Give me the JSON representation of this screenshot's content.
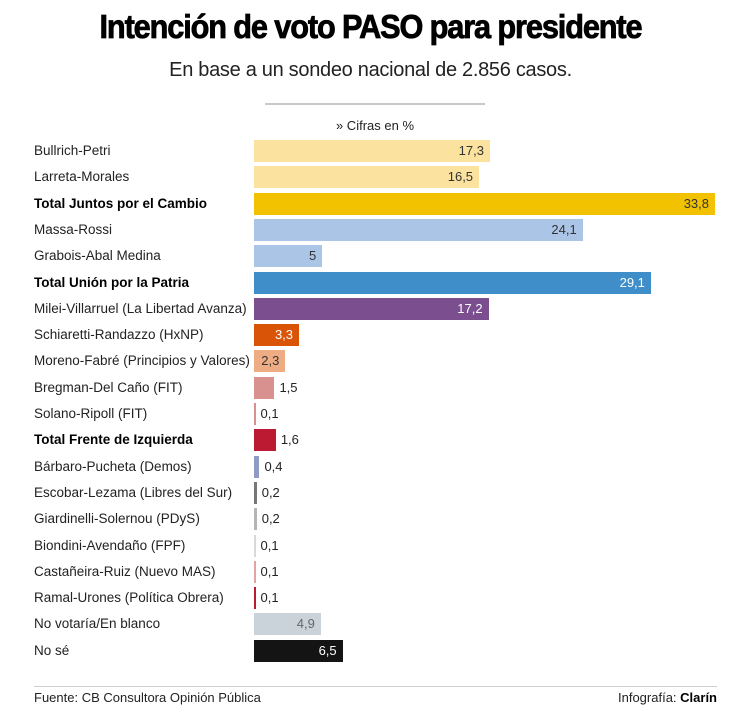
{
  "header": {
    "title": "Intención de voto PASO para presidente",
    "subtitle": "En base a un sondeo nacional de 2.856 casos.",
    "units_note": "» Cifras en %"
  },
  "footer": {
    "source": "Fuente: CB Consultora Opinión Pública",
    "credit_prefix": "Infografía: ",
    "credit_brand": "Clarín"
  },
  "chart_data": {
    "type": "bar",
    "orientation": "horizontal",
    "title": "Intención de voto PASO para presidente",
    "subtitle": "En base a un sondeo nacional de 2.856 casos.",
    "xlabel": "Cifras en %",
    "ylabel": "",
    "xlim": [
      0,
      33.8
    ],
    "grid": false,
    "legend": "none",
    "categories": [
      "Bullrich-Petri",
      "Larreta-Morales",
      "Total Juntos por el Cambio",
      "Massa-Rossi",
      "Grabois-Abal Medina",
      "Total Unión por la Patria",
      "Milei-Villarruel (La Libertad Avanza)",
      "Schiaretti-Randazzo (HxNP)",
      "Moreno-Fabré (Principios y Valores)",
      "Bregman-Del Caño (FIT)",
      "Solano-Ripoll (FIT)",
      "Total Frente de Izquierda",
      "Bárbaro-Pucheta (Demos)",
      "Escobar-Lezama (Libres del Sur)",
      "Giardinelli-Solernou (PDyS)",
      "Biondini-Avendaño (FPF)",
      "Castañeira-Ruiz (Nuevo MAS)",
      "Ramal-Urones (Política Obrera)",
      "No votaría/En blanco",
      "No sé"
    ],
    "values": [
      17.3,
      16.5,
      33.8,
      24.1,
      5,
      29.1,
      17.2,
      3.3,
      2.3,
      1.5,
      0.1,
      1.6,
      0.4,
      0.2,
      0.2,
      0.1,
      0.1,
      0.1,
      4.9,
      6.5
    ],
    "value_labels": [
      "17,3",
      "16,5",
      "33,8",
      "24,1",
      "5",
      "29,1",
      "17,2",
      "3,3",
      "2,3",
      "1,5",
      "0,1",
      "1,6",
      "0,4",
      "0,2",
      "0,2",
      "0,1",
      "0,1",
      "0,1",
      "4,9",
      "6,5"
    ],
    "bold": [
      false,
      false,
      true,
      false,
      false,
      true,
      false,
      false,
      false,
      false,
      false,
      true,
      false,
      false,
      false,
      false,
      false,
      false,
      false,
      false
    ],
    "colors": [
      "#fbe29f",
      "#fbe29f",
      "#f2c200",
      "#abc5e7",
      "#abc5e7",
      "#3f8ec9",
      "#7a4e8f",
      "#d95407",
      "#eeac84",
      "#d9918f",
      "#d9918f",
      "#bb1a32",
      "#8f9bc4",
      "#777777",
      "#b5b5b5",
      "#d9d9d9",
      "#e2a3a3",
      "#bb1a32",
      "#cad2da",
      "#141414"
    ],
    "label_colors": [
      "#333333",
      "#333333",
      "#333333",
      "#333333",
      "#333333",
      "#ffffff",
      "#ffffff",
      "#ffffff",
      "#333333",
      "#222222",
      "#222222",
      "#222222",
      "#222222",
      "#222222",
      "#222222",
      "#222222",
      "#222222",
      "#222222",
      "#666666",
      "#ffffff"
    ],
    "label_inside": [
      true,
      true,
      true,
      true,
      true,
      true,
      true,
      true,
      true,
      false,
      false,
      false,
      false,
      false,
      false,
      false,
      false,
      false,
      true,
      true
    ]
  }
}
